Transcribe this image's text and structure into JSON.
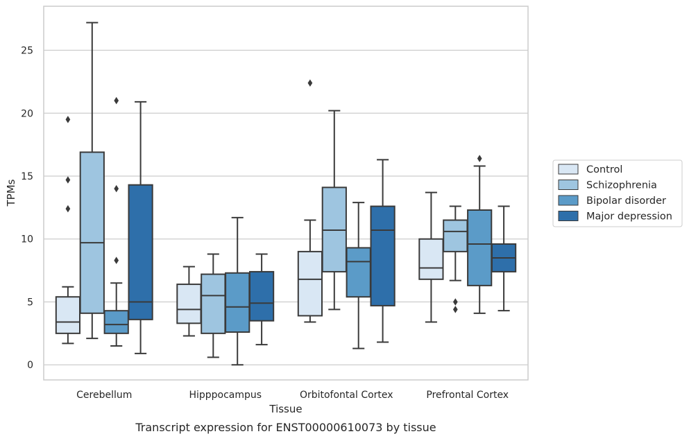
{
  "chart_data": {
    "type": "box",
    "title": "",
    "caption": "Transcript expression for ENST00000610073 by tissue",
    "xlabel": "Tissue",
    "ylabel": "TPMs",
    "ylim": [
      -1.2,
      28.5
    ],
    "yticks": [
      0,
      5,
      10,
      15,
      20,
      25
    ],
    "grid": "horizontal",
    "legend_position": "right",
    "categories": [
      "Cerebellum",
      "Hipppocampus",
      "Orbitofontal Cortex",
      "Prefrontal Cortex"
    ],
    "series": [
      {
        "name": "Control",
        "color": "#d9e7f4",
        "boxes": [
          {
            "whisker_low": 1.7,
            "q1": 2.5,
            "median": 3.4,
            "q3": 5.4,
            "whisker_high": 6.2,
            "outliers": [
              19.5,
              14.7,
              12.4
            ]
          },
          {
            "whisker_low": 2.3,
            "q1": 3.3,
            "median": 4.4,
            "q3": 6.4,
            "whisker_high": 7.8,
            "outliers": []
          },
          {
            "whisker_low": 3.4,
            "q1": 3.9,
            "median": 6.8,
            "q3": 9.0,
            "whisker_high": 11.5,
            "outliers": [
              22.4
            ]
          },
          {
            "whisker_low": 3.4,
            "q1": 6.8,
            "median": 7.7,
            "q3": 10.0,
            "whisker_high": 13.7,
            "outliers": []
          }
        ]
      },
      {
        "name": "Schizophrenia",
        "color": "#9ec5e0",
        "boxes": [
          {
            "whisker_low": 2.1,
            "q1": 4.1,
            "median": 9.7,
            "q3": 16.9,
            "whisker_high": 27.2,
            "outliers": []
          },
          {
            "whisker_low": 0.6,
            "q1": 2.5,
            "median": 5.5,
            "q3": 7.2,
            "whisker_high": 8.8,
            "outliers": []
          },
          {
            "whisker_low": 4.4,
            "q1": 7.4,
            "median": 10.7,
            "q3": 14.1,
            "whisker_high": 20.2,
            "outliers": []
          },
          {
            "whisker_low": 6.7,
            "q1": 9.0,
            "median": 10.6,
            "q3": 11.5,
            "whisker_high": 12.6,
            "outliers": [
              5.0,
              4.4
            ]
          }
        ]
      },
      {
        "name": "Bipolar disorder",
        "color": "#5b9bc8",
        "boxes": [
          {
            "whisker_low": 1.5,
            "q1": 2.5,
            "median": 3.2,
            "q3": 4.3,
            "whisker_high": 6.5,
            "outliers": [
              21.0,
              14.0,
              8.3
            ]
          },
          {
            "whisker_low": 0.0,
            "q1": 2.6,
            "median": 4.6,
            "q3": 7.3,
            "whisker_high": 11.7,
            "outliers": []
          },
          {
            "whisker_low": 1.3,
            "q1": 5.4,
            "median": 8.2,
            "q3": 9.3,
            "whisker_high": 12.9,
            "outliers": []
          },
          {
            "whisker_low": 4.1,
            "q1": 6.3,
            "median": 9.6,
            "q3": 12.3,
            "whisker_high": 15.8,
            "outliers": [
              16.4
            ]
          }
        ]
      },
      {
        "name": "Major depression",
        "color": "#2e6faa",
        "boxes": [
          {
            "whisker_low": 0.9,
            "q1": 3.6,
            "median": 5.0,
            "q3": 14.3,
            "whisker_high": 20.9,
            "outliers": []
          },
          {
            "whisker_low": 1.6,
            "q1": 3.5,
            "median": 4.9,
            "q3": 7.4,
            "whisker_high": 8.8,
            "outliers": []
          },
          {
            "whisker_low": 1.8,
            "q1": 4.7,
            "median": 10.7,
            "q3": 12.6,
            "whisker_high": 16.3,
            "outliers": []
          },
          {
            "whisker_low": 4.3,
            "q1": 7.4,
            "median": 8.5,
            "q3": 9.6,
            "whisker_high": 12.6,
            "outliers": []
          }
        ]
      }
    ]
  }
}
